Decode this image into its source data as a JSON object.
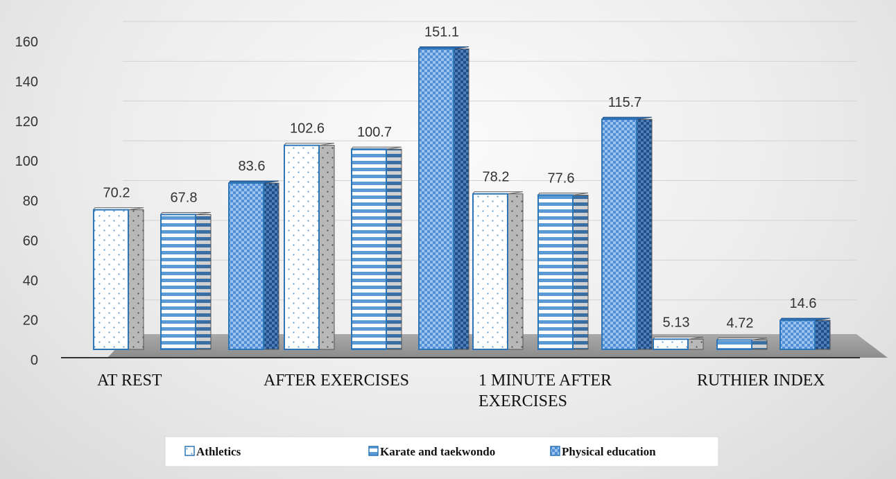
{
  "chart_data": {
    "type": "bar",
    "title": "",
    "xlabel": "",
    "ylabel": "",
    "ylim": [
      0,
      160
    ],
    "yticks": [
      0,
      20,
      40,
      60,
      80,
      100,
      120,
      140,
      160
    ],
    "categories": [
      "AT REST",
      "AFTER EXERCISES",
      "1 MINUTE AFTER EXERCISES",
      "RUTHIER INDEX"
    ],
    "category_lines": [
      [
        "AT REST"
      ],
      [
        "AFTER EXERCISES"
      ],
      [
        "1 MINUTE AFTER",
        "EXERCISES"
      ],
      [
        "RUTHIER INDEX"
      ]
    ],
    "series": [
      {
        "name": "Athletics",
        "values": [
          70.2,
          102.6,
          78.2,
          5.13
        ],
        "labels": [
          "70.2",
          "102.6",
          "78.2",
          "5.13"
        ],
        "pattern": "dots",
        "color": "#ffffff"
      },
      {
        "name": "Karate and taekwondo",
        "values": [
          67.8,
          100.7,
          77.6,
          4.72
        ],
        "labels": [
          "67.8",
          "100.7",
          "77.6",
          "4.72"
        ],
        "pattern": "stripes",
        "color": "#5b9bd5"
      },
      {
        "name": "Physical education",
        "values": [
          83.6,
          151.1,
          115.7,
          14.6
        ],
        "labels": [
          "83.6",
          "151.1",
          "115.7",
          "14.6"
        ],
        "pattern": "checks",
        "color": "#3a7fcf"
      }
    ],
    "grid": true,
    "legend_position": "bottom",
    "edge_color": "#2e75b6"
  }
}
